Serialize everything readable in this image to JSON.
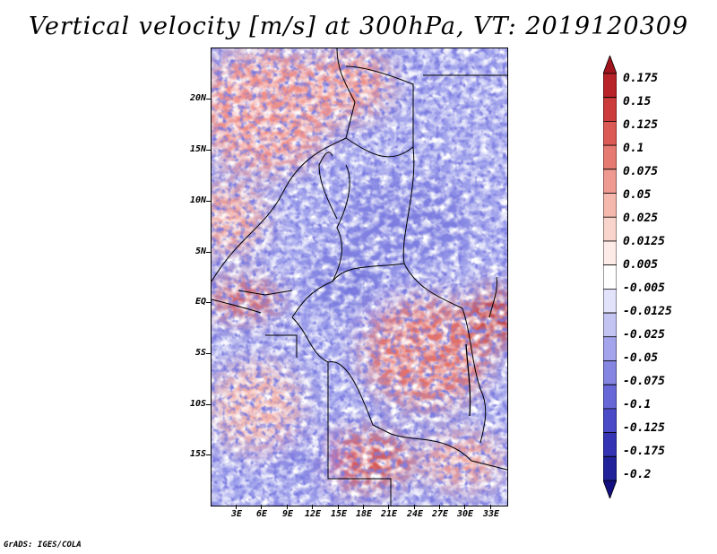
{
  "title": "Vertical velocity [m/s] at 300hPa, VT: 2019120309",
  "credit": "GrADS: IGES/COLA",
  "lat_labels": [
    "20N",
    "15N",
    "10N",
    "5N",
    "EQ",
    "5S",
    "10S",
    "15S"
  ],
  "lon_labels": [
    "3E",
    "6E",
    "9E",
    "12E",
    "15E",
    "18E",
    "21E",
    "24E",
    "27E",
    "30E",
    "33E"
  ],
  "colorbar": {
    "labels": [
      "0.175",
      "0.15",
      "0.125",
      "0.1",
      "0.075",
      "0.05",
      "0.025",
      "0.0125",
      "0.005",
      "-0.005",
      "-0.0125",
      "-0.025",
      "-0.05",
      "-0.075",
      "-0.1",
      "-0.125",
      "-0.175",
      "-0.2"
    ],
    "colors": [
      "#a0141e",
      "#b82329",
      "#cc3c3c",
      "#dc5a55",
      "#e67a72",
      "#ef9a90",
      "#f5b8ad",
      "#f9d4cc",
      "#fcebe6",
      "#ffffff",
      "#e2e2fa",
      "#c4c4f3",
      "#a4a4ec",
      "#8585e2",
      "#6767d8",
      "#4b4bc8",
      "#3434b4",
      "#22229a",
      "#140f80"
    ]
  }
}
